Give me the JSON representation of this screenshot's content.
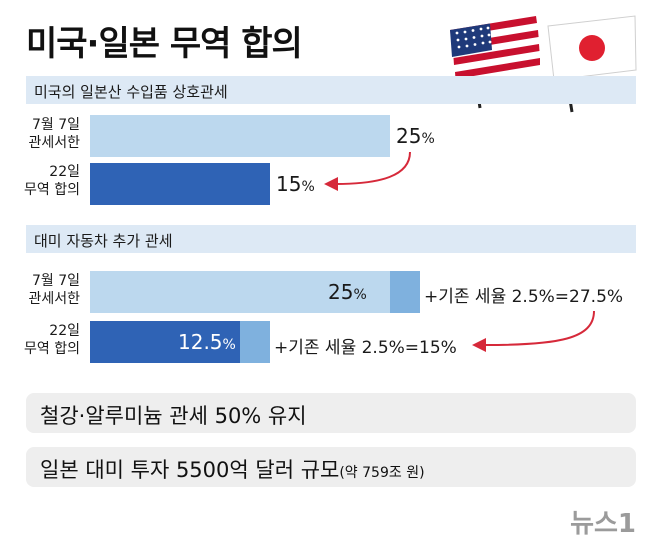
{
  "title": "미국·일본 무역 합의",
  "sections": [
    {
      "label": "미국의 일본산 수입품 상호관세",
      "rows": [
        {
          "label_line1": "7월 7일",
          "label_line2": "관세서한",
          "value": 25,
          "value_text": "25",
          "unit": "%"
        },
        {
          "label_line1": "22일",
          "label_line2": "무역 합의",
          "value": 15,
          "value_text": "15",
          "unit": "%"
        }
      ]
    },
    {
      "label": "대미 자동차 추가 관세",
      "rows": [
        {
          "label_line1": "7월 7일",
          "label_line2": "관세서한",
          "value": 25,
          "value_text": "25",
          "unit": "%",
          "extra": 2.5,
          "note": "+기존 세율 2.5%=27.5%"
        },
        {
          "label_line1": "22일",
          "label_line2": "무역 합의",
          "value": 12.5,
          "value_text": "12.5",
          "unit": "%",
          "extra": 2.5,
          "note": "+기존 세율 2.5%=15%"
        }
      ]
    }
  ],
  "info": [
    {
      "text": "철강·알루미늄 관세 50% 유지",
      "sub": ""
    },
    {
      "text": "일본 대미 투자 5500억 달러 규모",
      "sub": "(약 759조 원)"
    }
  ],
  "logo": "뉴스1",
  "colors": {
    "light_bar": "#bcd8ee",
    "dark_bar": "#2f63b5",
    "extra_bar": "#7fb1de",
    "arrow": "#d6293a",
    "band": "#dde9f5"
  },
  "chart_data": [
    {
      "type": "bar",
      "title": "미국의 일본산 수입품 상호관세",
      "categories": [
        "7월 7일 관세서한",
        "22일 무역 합의"
      ],
      "values": [
        25,
        15
      ],
      "unit": "%"
    },
    {
      "type": "bar",
      "title": "대미 자동차 추가 관세",
      "categories": [
        "7월 7일 관세서한",
        "22일 무역 합의"
      ],
      "series": [
        {
          "name": "추가 관세",
          "values": [
            25,
            12.5
          ]
        },
        {
          "name": "기존 세율",
          "values": [
            2.5,
            2.5
          ]
        }
      ],
      "unit": "%"
    }
  ]
}
